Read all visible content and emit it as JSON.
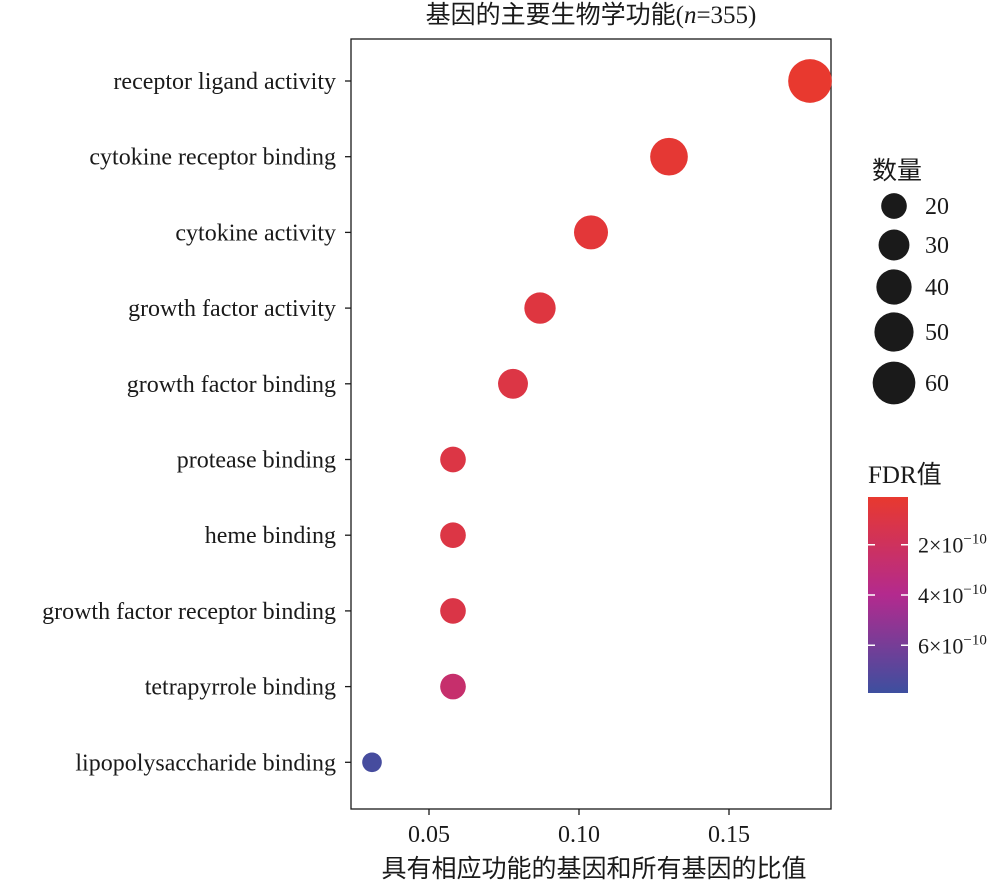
{
  "chart_data": {
    "type": "scatter",
    "title": "基因的主要生物学功能(n=355)",
    "title_prefix": "基因的主要生物学功能(",
    "title_n": "n",
    "title_suffix": "=355)",
    "xlabel": "具有相应功能的基因和所有基因的比值",
    "ylabel": "",
    "xlim": [
      0.024,
      0.184
    ],
    "xticks": [
      0.05,
      0.1,
      0.15
    ],
    "xtick_labels": [
      "0.05",
      "0.10",
      "0.15"
    ],
    "categories": [
      "receptor ligand activity",
      "cytokine receptor binding",
      "cytokine activity",
      "growth factor activity",
      "growth factor binding",
      "protease binding",
      "heme binding",
      "growth factor receptor binding",
      "tetrapyrrole binding",
      "lipopolysaccharide binding"
    ],
    "points": [
      {
        "term": "receptor ligand activity",
        "ratio": 0.177,
        "count": 63,
        "fdr": 1e-11
      },
      {
        "term": "cytokine receptor binding",
        "ratio": 0.13,
        "count": 46,
        "fdr": 3e-11
      },
      {
        "term": "cytokine activity",
        "ratio": 0.104,
        "count": 37,
        "fdr": 5e-11
      },
      {
        "term": "growth factor activity",
        "ratio": 0.087,
        "count": 31,
        "fdr": 8e-11
      },
      {
        "term": "growth factor binding",
        "ratio": 0.078,
        "count": 28,
        "fdr": 1e-10
      },
      {
        "term": "protease binding",
        "ratio": 0.058,
        "count": 20,
        "fdr": 1e-10
      },
      {
        "term": "heme binding",
        "ratio": 0.058,
        "count": 20,
        "fdr": 1e-10
      },
      {
        "term": "growth factor receptor binding",
        "ratio": 0.058,
        "count": 20,
        "fdr": 1.1e-10
      },
      {
        "term": "tetrapyrrole binding",
        "ratio": 0.058,
        "count": 20,
        "fdr": 2.6e-10
      },
      {
        "term": "lipopolysaccharide binding",
        "ratio": 0.031,
        "count": 11,
        "fdr": 7.6e-10
      }
    ],
    "size_legend": {
      "title": "数量",
      "values": [
        20,
        30,
        40,
        50,
        60
      ],
      "labels": [
        "20",
        "30",
        "40",
        "50",
        "60"
      ]
    },
    "color_legend": {
      "title": "FDR值",
      "range": [
        1e-11,
        7.9e-10
      ],
      "ticks": [
        2e-10,
        4e-10,
        6e-10
      ],
      "tick_mantissas": [
        "2",
        "4",
        "6"
      ],
      "tick_exponent": "−10",
      "low_color": "#e8392f",
      "mid_color": "#b32a8e",
      "high_color": "#3d4f9f"
    }
  }
}
